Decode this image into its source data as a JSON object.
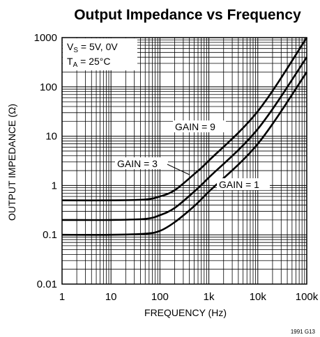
{
  "chart_data": {
    "type": "line",
    "title": "Output Impedance vs Frequency",
    "xlabel": "FREQUENCY (Hz)",
    "ylabel": "OUTPUT IMPEDANCE (Ω)",
    "x_scale": "log",
    "y_scale": "log",
    "xlim": [
      1,
      100000
    ],
    "ylim": [
      0.01,
      1000
    ],
    "x_ticks": [
      {
        "value": 1,
        "label": "1"
      },
      {
        "value": 10,
        "label": "10"
      },
      {
        "value": 100,
        "label": "100"
      },
      {
        "value": 1000,
        "label": "1k"
      },
      {
        "value": 10000,
        "label": "10k"
      },
      {
        "value": 100000,
        "label": "100k"
      }
    ],
    "y_ticks": [
      {
        "value": 0.01,
        "label": "0.01"
      },
      {
        "value": 0.1,
        "label": "0.1"
      },
      {
        "value": 1,
        "label": "1"
      },
      {
        "value": 10,
        "label": "10"
      },
      {
        "value": 100,
        "label": "100"
      },
      {
        "value": 1000,
        "label": "1000"
      }
    ],
    "grid": true,
    "conditions": {
      "supply": "V_S = 5V, 0V",
      "temperature": "T_A = 25°C"
    },
    "series": [
      {
        "name": "GAIN = 9",
        "x": [
          1,
          10,
          50,
          100,
          200,
          500,
          1000,
          10000,
          100000
        ],
        "y": [
          0.5,
          0.5,
          0.52,
          0.6,
          0.8,
          1.7,
          3.2,
          32,
          1000
        ]
      },
      {
        "name": "GAIN = 3",
        "x": [
          1,
          10,
          50,
          100,
          200,
          500,
          1000,
          10000,
          100000
        ],
        "y": [
          0.2,
          0.2,
          0.21,
          0.25,
          0.35,
          0.75,
          1.45,
          14,
          400
        ]
      },
      {
        "name": "GAIN = 1",
        "x": [
          1,
          10,
          50,
          100,
          200,
          500,
          1000,
          10000,
          100000
        ],
        "y": [
          0.1,
          0.1,
          0.105,
          0.12,
          0.18,
          0.38,
          0.75,
          7,
          200
        ]
      }
    ],
    "annotations": {
      "gain9": "GAIN = 9",
      "gain3": "GAIN = 3",
      "gain1": "GAIN = 1"
    },
    "figure_id": "1991 G13"
  }
}
